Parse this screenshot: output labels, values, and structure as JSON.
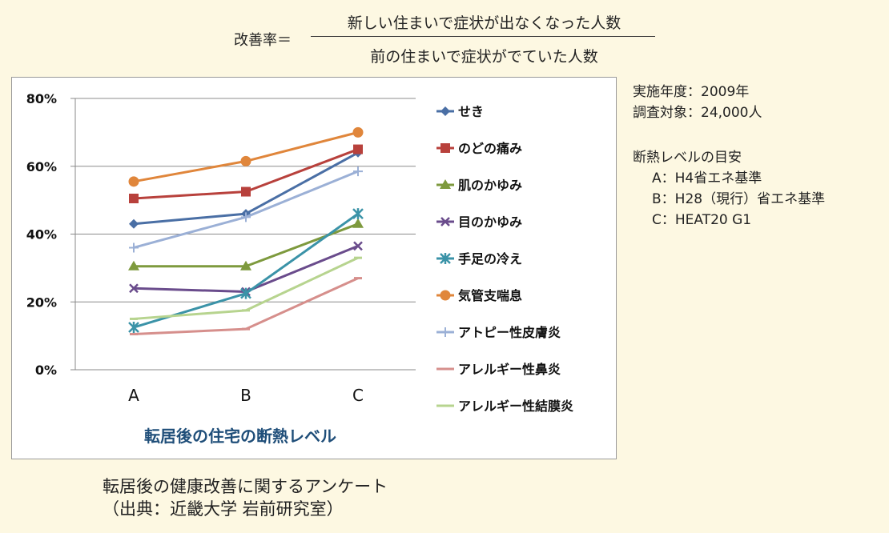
{
  "formula": {
    "label": "改善率＝",
    "numerator": "新しい住まいで症状が出なくなった人数",
    "denominator": "前の住まいで症状がでていた人数"
  },
  "info": {
    "year": "実施年度：2009年",
    "subjects": "調査対象：24,000人",
    "levels_title": "断熱レベルの目安",
    "level_a": "A：H4省エネ基準",
    "level_b": "B：H28（現行）省エネ基準",
    "level_c": "C：HEAT20 G1"
  },
  "caption": {
    "line1": "転居後の健康改善に関するアンケート",
    "line2": "（出典：近畿大学 岩前研究室）"
  },
  "chart_data": {
    "type": "line",
    "xlabel": "転居後の住宅の断熱レベル",
    "ylabel": "",
    "categories": [
      "A",
      "B",
      "C"
    ],
    "ylim": [
      0,
      80
    ],
    "yticks": [
      0,
      20,
      40,
      60,
      80
    ],
    "ytick_labels": [
      "0%",
      "20%",
      "40%",
      "60%",
      "80%"
    ],
    "grid": true,
    "legend_position": "right",
    "series": [
      {
        "name": "せき",
        "values": [
          43,
          46,
          64
        ],
        "color": "#4a6fa5",
        "marker": "diamond"
      },
      {
        "name": "のどの痛み",
        "values": [
          50.5,
          52.5,
          65
        ],
        "color": "#b8413c",
        "marker": "square"
      },
      {
        "name": "肌のかゆみ",
        "values": [
          30.5,
          30.5,
          43
        ],
        "color": "#7e9a3e",
        "marker": "triangle"
      },
      {
        "name": "目のかゆみ",
        "values": [
          24,
          23,
          36.5
        ],
        "color": "#6a4c8c",
        "marker": "x"
      },
      {
        "name": "手足の冷え",
        "values": [
          12.5,
          22.5,
          46
        ],
        "color": "#3b93a8",
        "marker": "star"
      },
      {
        "name": "気管支喘息",
        "values": [
          55.5,
          61.5,
          70
        ],
        "color": "#e0863b",
        "marker": "circle"
      },
      {
        "name": "アトピー性皮膚炎",
        "values": [
          36,
          45,
          58.5
        ],
        "color": "#9bb0d6",
        "marker": "plus"
      },
      {
        "name": "アレルギー性鼻炎",
        "values": [
          10.5,
          12,
          27
        ],
        "color": "#d68f8c",
        "marker": "dash"
      },
      {
        "name": "アレルギー性結膜炎",
        "values": [
          15,
          17.5,
          33
        ],
        "color": "#b7d48f",
        "marker": "dash"
      }
    ]
  }
}
